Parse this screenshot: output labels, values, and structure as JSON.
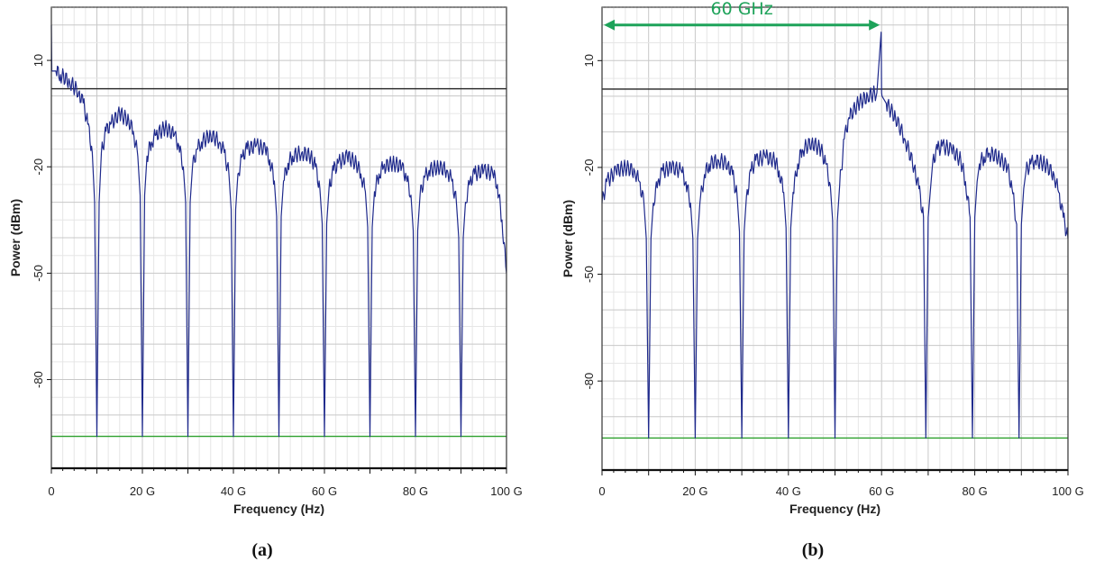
{
  "colors": {
    "trace": "#1f2a8c",
    "reference_black": "#222222",
    "reference_green": "#2ca02c",
    "annotation": "#1ea35a",
    "grid_major": "#c8c8c8",
    "grid_minor": "#e6e6e6"
  },
  "chart_data": [
    {
      "type": "line",
      "panel_label": "(a)",
      "xlabel": "Frequency (Hz)",
      "ylabel": "Power (dBm)",
      "xlim": [
        0,
        100
      ],
      "ylim": [
        -105,
        25
      ],
      "x_ticks": [
        0,
        20,
        40,
        60,
        80,
        100
      ],
      "x_tick_labels": [
        "0",
        "20 G",
        "40 G",
        "60 G",
        "80 G",
        "100 G"
      ],
      "y_ticks": [
        10,
        -20,
        -50,
        -80
      ],
      "y_tick_labels": [
        "10",
        "-20",
        "-50",
        "-80"
      ],
      "grid": true,
      "reference_lines": [
        {
          "y": 2,
          "color": "black"
        },
        {
          "y": -96,
          "color": "green"
        }
      ],
      "series": [
        {
          "x": [
            0,
            0.1,
            1,
            2,
            4,
            6,
            7,
            8,
            9,
            9.5,
            10,
            10.5,
            11,
            12,
            13,
            15,
            17,
            18,
            19,
            19.5,
            20,
            20.5,
            21,
            22,
            23,
            25,
            27,
            28,
            29,
            29.5,
            30,
            30.5,
            31,
            32,
            33,
            35,
            37,
            38,
            39,
            39.5,
            40,
            40.5,
            41,
            42,
            43,
            45,
            47,
            48,
            49,
            49.5,
            50,
            50.5,
            51,
            52,
            53,
            55,
            57,
            58,
            59,
            59.5,
            60,
            60.5,
            61,
            62,
            63,
            65,
            67,
            68,
            69,
            69.5,
            70,
            70.5,
            71,
            72,
            73,
            75,
            77,
            78,
            79,
            79.5,
            80,
            80.5,
            81,
            82,
            83,
            85,
            87,
            88,
            89,
            89.5,
            90,
            90.5,
            91,
            92,
            93,
            95,
            97,
            98,
            99,
            100
          ],
          "y": [
            20,
            7,
            7,
            6,
            4,
            1,
            -2,
            -8,
            -16,
            -30,
            -96,
            -30,
            -16,
            -10,
            -8,
            -5,
            -7,
            -10,
            -17,
            -28,
            -96,
            -28,
            -17,
            -13,
            -11,
            -9,
            -11,
            -14,
            -20,
            -30,
            -96,
            -30,
            -20,
            -15,
            -13,
            -11,
            -13,
            -16,
            -22,
            -32,
            -96,
            -32,
            -22,
            -17,
            -15,
            -14,
            -15,
            -18,
            -24,
            -34,
            -96,
            -34,
            -24,
            -19,
            -17,
            -16,
            -17,
            -20,
            -26,
            -36,
            -96,
            -36,
            -26,
            -21,
            -19,
            -17,
            -19,
            -22,
            -27,
            -37,
            -96,
            -37,
            -27,
            -22,
            -20,
            -19,
            -20,
            -23,
            -28,
            -38,
            -96,
            -38,
            -28,
            -23,
            -21,
            -20,
            -21,
            -24,
            -30,
            -40,
            -96,
            -40,
            -30,
            -24,
            -22,
            -21,
            -22,
            -25,
            -35,
            -50
          ]
        }
      ]
    },
    {
      "type": "line",
      "panel_label": "(b)",
      "xlabel": "Frequency (Hz)",
      "ylabel": "Power (dBm)",
      "xlim": [
        0,
        100
      ],
      "ylim": [
        -105,
        25
      ],
      "x_ticks": [
        0,
        20,
        40,
        60,
        80,
        100
      ],
      "x_tick_labels": [
        "0",
        "20 G",
        "40 G",
        "60 G",
        "80 G",
        "100 G"
      ],
      "y_ticks": [
        10,
        -20,
        -50,
        -80
      ],
      "y_tick_labels": [
        "10",
        "-20",
        "-50",
        "-80"
      ],
      "grid": true,
      "annotations": [
        {
          "text": "60 GHz",
          "from_x": 0,
          "to_x": 60,
          "y": 20
        }
      ],
      "reference_lines": [
        {
          "y": 2,
          "color": "black"
        },
        {
          "y": -96,
          "color": "green"
        }
      ],
      "series": [
        {
          "x": [
            0,
            1,
            3,
            5,
            7,
            8,
            9,
            9.5,
            10,
            10.5,
            11,
            12,
            13,
            15,
            17,
            18,
            19,
            19.5,
            20,
            20.5,
            21,
            22,
            23,
            25,
            27,
            28,
            29,
            29.5,
            30,
            30.5,
            31,
            32,
            33,
            35,
            37,
            38,
            39,
            39.5,
            40,
            40.5,
            41,
            42,
            43,
            45,
            47,
            48,
            49,
            49.5,
            50,
            50.5,
            51,
            52,
            53,
            55,
            57,
            59,
            59.9,
            60,
            60.1,
            61,
            63,
            65,
            67,
            68,
            69,
            69.5,
            70,
            70.5,
            71,
            72,
            73,
            75,
            77,
            78,
            79,
            79.5,
            80,
            80.5,
            81,
            82,
            83,
            85,
            87,
            88,
            89,
            89.5,
            90,
            90.5,
            91,
            92,
            93,
            95,
            97,
            98,
            99,
            100
          ],
          "y": [
            -30,
            -24,
            -21,
            -20,
            -21,
            -24,
            -30,
            -40,
            -96,
            -40,
            -30,
            -24,
            -21,
            -20,
            -21,
            -24,
            -30,
            -40,
            -96,
            -40,
            -30,
            -22,
            -19,
            -18,
            -19,
            -22,
            -28,
            -38,
            -96,
            -38,
            -28,
            -21,
            -18,
            -17,
            -18,
            -21,
            -27,
            -37,
            -96,
            -37,
            -27,
            -19,
            -15,
            -13,
            -15,
            -19,
            -25,
            -35,
            -96,
            -35,
            -25,
            -12,
            -6,
            -2,
            0,
            1,
            18,
            1,
            0,
            -2,
            -6,
            -12,
            -20,
            -26,
            -34,
            -96,
            -34,
            -26,
            -18,
            -15,
            -14,
            -15,
            -18,
            -24,
            -34,
            -96,
            -34,
            -24,
            -19,
            -17,
            -16,
            -17,
            -20,
            -26,
            -36,
            -96,
            -36,
            -26,
            -21,
            -19,
            -18,
            -19,
            -22,
            -27,
            -34,
            -40
          ]
        }
      ]
    }
  ]
}
